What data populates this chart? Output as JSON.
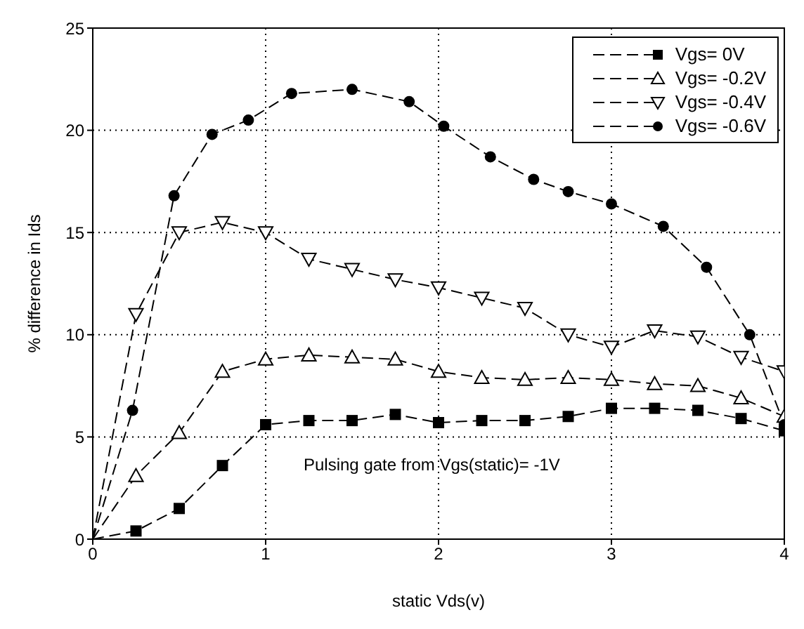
{
  "chart_data": {
    "type": "line",
    "xlabel": "static Vds(v)",
    "ylabel": "% difference in Ids",
    "xlim": [
      0,
      4
    ],
    "xticks": [
      0,
      1,
      2,
      3,
      4
    ],
    "ylim": [
      0,
      25
    ],
    "yticks": [
      0,
      5,
      10,
      15,
      20,
      25
    ],
    "grid": true,
    "legend": "top right",
    "line_style": "dashed",
    "annotations": [
      "Pulsing gate from Vgs(static)= -1V"
    ],
    "series": [
      {
        "name": "Vgs= 0V",
        "color": "#000000",
        "marker": "square",
        "x": [
          0,
          0.25,
          0.5,
          0.75,
          1,
          1.25,
          1.5,
          1.75,
          2,
          2.25,
          2.5,
          2.75,
          3,
          3.25,
          3.5,
          3.75,
          4
        ],
        "values": [
          0,
          0.4,
          1.5,
          3.6,
          5.6,
          5.8,
          5.8,
          6.1,
          5.7,
          5.8,
          5.8,
          6.0,
          6.4,
          6.4,
          6.3,
          5.9,
          5.3
        ]
      },
      {
        "name": "Vgs= -0.2V",
        "color": "#000000",
        "marker": "triangle",
        "x": [
          0,
          0.25,
          0.5,
          0.75,
          1,
          1.25,
          1.5,
          1.75,
          2,
          2.25,
          2.5,
          2.75,
          3,
          3.25,
          3.5,
          3.75,
          4
        ],
        "values": [
          0,
          3.1,
          5.2,
          8.2,
          8.8,
          9.0,
          8.9,
          8.8,
          8.2,
          7.9,
          7.8,
          7.9,
          7.8,
          7.6,
          7.5,
          6.9,
          6.0
        ]
      },
      {
        "name": "Vgs= -0.4V",
        "color": "#000000",
        "marker": "triangle-down",
        "x": [
          0,
          0.25,
          0.5,
          0.75,
          1,
          1.25,
          1.5,
          1.75,
          2,
          2.25,
          2.5,
          2.75,
          3,
          3.25,
          3.5,
          3.75,
          4
        ],
        "values": [
          0,
          11.0,
          15.0,
          15.5,
          15.0,
          13.7,
          13.2,
          12.7,
          12.3,
          11.8,
          11.3,
          10.0,
          9.4,
          10.2,
          9.9,
          8.9,
          8.2
        ]
      },
      {
        "name": "Vgs= -0.6V",
        "color": "#000000",
        "marker": "circle",
        "x": [
          0,
          0.23,
          0.47,
          0.69,
          0.9,
          1.15,
          1.5,
          1.83,
          2.03,
          2.3,
          2.55,
          2.75,
          3,
          3.3,
          3.55,
          3.8,
          4
        ],
        "values": [
          0,
          6.3,
          16.8,
          19.8,
          20.5,
          21.8,
          22.0,
          21.4,
          20.2,
          18.7,
          17.6,
          17.0,
          16.4,
          15.3,
          13.3,
          10.0,
          5.6
        ]
      }
    ]
  }
}
